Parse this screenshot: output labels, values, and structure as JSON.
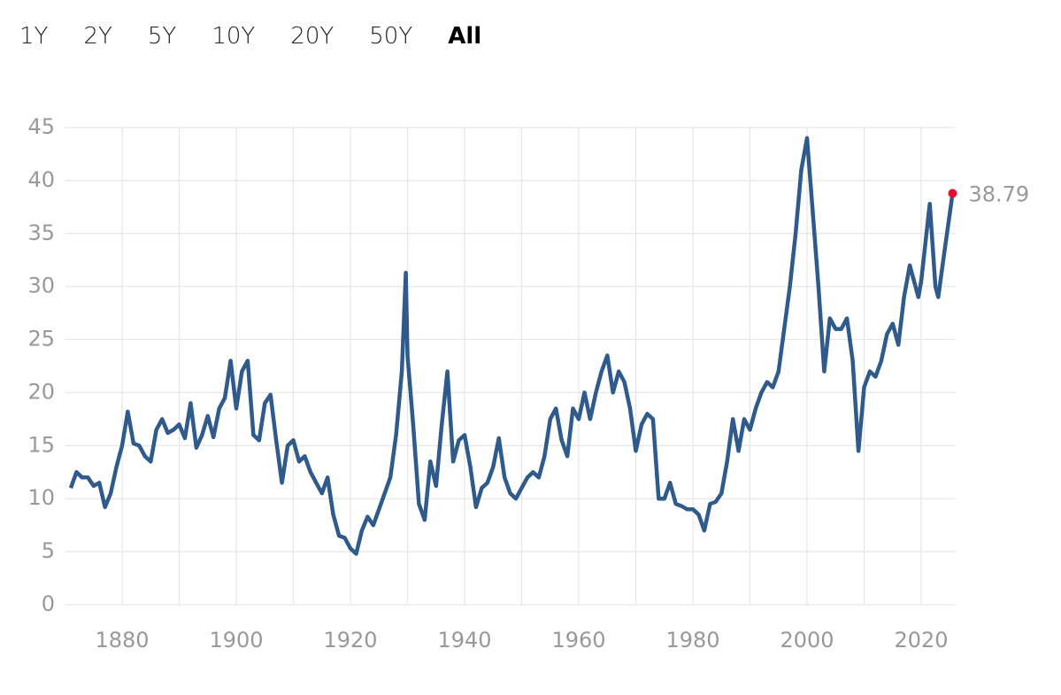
{
  "tabs": [
    "1Y",
    "2Y",
    "5Y",
    "10Y",
    "20Y",
    "50Y",
    "All"
  ],
  "selected_tab": "All",
  "chart_data": {
    "type": "line",
    "x": [
      1871,
      1872,
      1873,
      1874,
      1875,
      1876,
      1877,
      1878,
      1879,
      1880,
      1881,
      1882,
      1883,
      1884,
      1885,
      1886,
      1887,
      1888,
      1889,
      1890,
      1891,
      1892,
      1893,
      1894,
      1895,
      1896,
      1897,
      1898,
      1899,
      1900,
      1901,
      1902,
      1903,
      1904,
      1905,
      1906,
      1907,
      1908,
      1909,
      1910,
      1911,
      1912,
      1913,
      1914,
      1915,
      1916,
      1917,
      1918,
      1919,
      1920,
      1921,
      1922,
      1923,
      1924,
      1925,
      1926,
      1927,
      1928,
      1929,
      1929.7,
      1930,
      1931,
      1932,
      1933,
      1934,
      1935,
      1936,
      1937,
      1938,
      1939,
      1940,
      1941,
      1942,
      1943,
      1944,
      1945,
      1946,
      1947,
      1948,
      1949,
      1950,
      1951,
      1952,
      1953,
      1954,
      1955,
      1956,
      1957,
      1958,
      1959,
      1960,
      1961,
      1962,
      1963,
      1964,
      1965,
      1966,
      1967,
      1968,
      1969,
      1970,
      1971,
      1972,
      1973,
      1974,
      1975,
      1976,
      1977,
      1978,
      1979,
      1980,
      1981,
      1982,
      1983,
      1984,
      1985,
      1986,
      1987,
      1988,
      1989,
      1990,
      1991,
      1992,
      1993,
      1994,
      1995,
      1996,
      1997,
      1998,
      1999,
      2000,
      2001,
      2002,
      2003,
      2004,
      2005,
      2006,
      2007,
      2008,
      2009,
      2010,
      2011,
      2012,
      2013,
      2014,
      2015,
      2016,
      2017,
      2018,
      2019.5,
      2020,
      2021.5,
      2022.5,
      2023,
      2024,
      2025.5
    ],
    "series": [
      {
        "color": "#2f5a8c",
        "values": [
          11,
          12.5,
          12,
          12,
          11.2,
          11.5,
          9.2,
          10.5,
          13,
          15,
          18.2,
          15.2,
          15,
          14,
          13.5,
          16.5,
          17.5,
          16.2,
          16.5,
          17,
          15.7,
          19,
          14.8,
          16,
          17.8,
          15.8,
          18.5,
          19.5,
          23,
          18.5,
          22,
          23,
          16,
          15.5,
          19,
          19.8,
          15.5,
          11.5,
          15,
          15.5,
          13.5,
          14,
          12.5,
          11.5,
          10.5,
          12,
          8.5,
          6.5,
          6.3,
          5.3,
          4.8,
          7,
          8.3,
          7.5,
          9,
          10.5,
          12,
          16,
          22,
          31.3,
          23.5,
          17,
          9.5,
          8,
          13.5,
          11.2,
          17,
          22,
          13.5,
          15.5,
          16,
          13,
          9.2,
          11,
          11.5,
          13,
          15.7,
          12,
          10.5,
          10,
          11,
          12,
          12.5,
          12,
          14,
          17.5,
          18.5,
          15.5,
          14,
          18.5,
          17.5,
          20,
          17.5,
          20,
          22,
          23.5,
          20,
          22,
          21,
          18.5,
          14.5,
          17,
          18,
          17.5,
          10,
          10,
          11.5,
          9.5,
          9.3,
          9,
          9,
          8.5,
          7,
          9.5,
          9.7,
          10.5,
          13.5,
          17.5,
          14.5,
          17.5,
          16.5,
          18.5,
          20,
          21,
          20.5,
          22,
          26,
          30,
          35,
          41,
          44,
          37,
          30,
          22,
          27,
          26,
          26,
          27,
          23,
          14.5,
          20.5,
          22,
          21.5,
          23,
          25.5,
          26.5,
          24.5,
          29,
          32,
          29,
          30.5,
          37.8,
          30,
          29,
          33,
          38.79
        ]
      }
    ],
    "last_point_color": "#e0102e",
    "xlim": [
      1870,
      2026
    ],
    "xticks": [
      1880,
      1900,
      1920,
      1940,
      1960,
      1980,
      2000,
      2020
    ],
    "xgrid_minor": [
      1890,
      1910,
      1930,
      1950,
      1970,
      1990,
      2010
    ],
    "ylim": [
      0,
      45
    ],
    "yticks": [
      0,
      5,
      10,
      15,
      20,
      25,
      30,
      35,
      40,
      45
    ],
    "grid": true
  }
}
